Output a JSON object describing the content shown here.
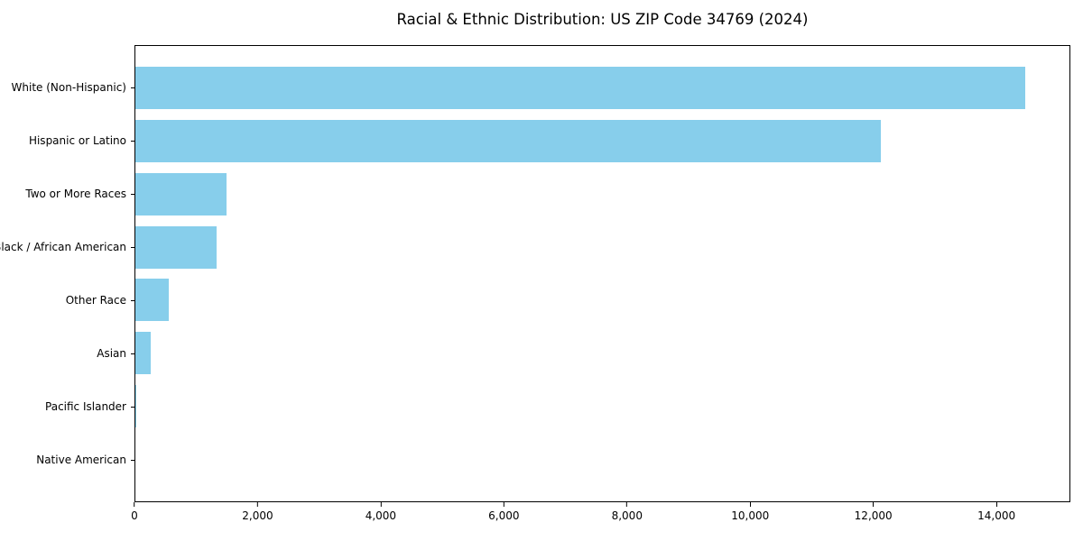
{
  "title": "Racial & Ethnic Distribution: US ZIP Code 34769 (2024)",
  "chart_data": {
    "type": "bar",
    "orientation": "horizontal",
    "title": "Racial & Ethnic Distribution: US ZIP Code 34769 (2024)",
    "xlabel": "",
    "ylabel": "",
    "categories": [
      "White (Non-Hispanic)",
      "Hispanic or Latino",
      "Two or More Races",
      "Black / African American",
      "Other Race",
      "Asian",
      "Pacific Islander",
      "Native American"
    ],
    "values": [
      14480,
      12130,
      1490,
      1320,
      540,
      245,
      20,
      0
    ],
    "xlim": [
      0,
      15200
    ],
    "x_ticks": [
      0,
      2000,
      4000,
      6000,
      8000,
      10000,
      12000,
      14000
    ],
    "x_tick_labels": [
      "0",
      "2,000",
      "4,000",
      "6,000",
      "8,000",
      "10,000",
      "12,000",
      "14,000"
    ],
    "bar_color": "#87CEEB",
    "grid": false,
    "legend": false,
    "axis_color": "#000000",
    "background_color": "#ffffff"
  }
}
